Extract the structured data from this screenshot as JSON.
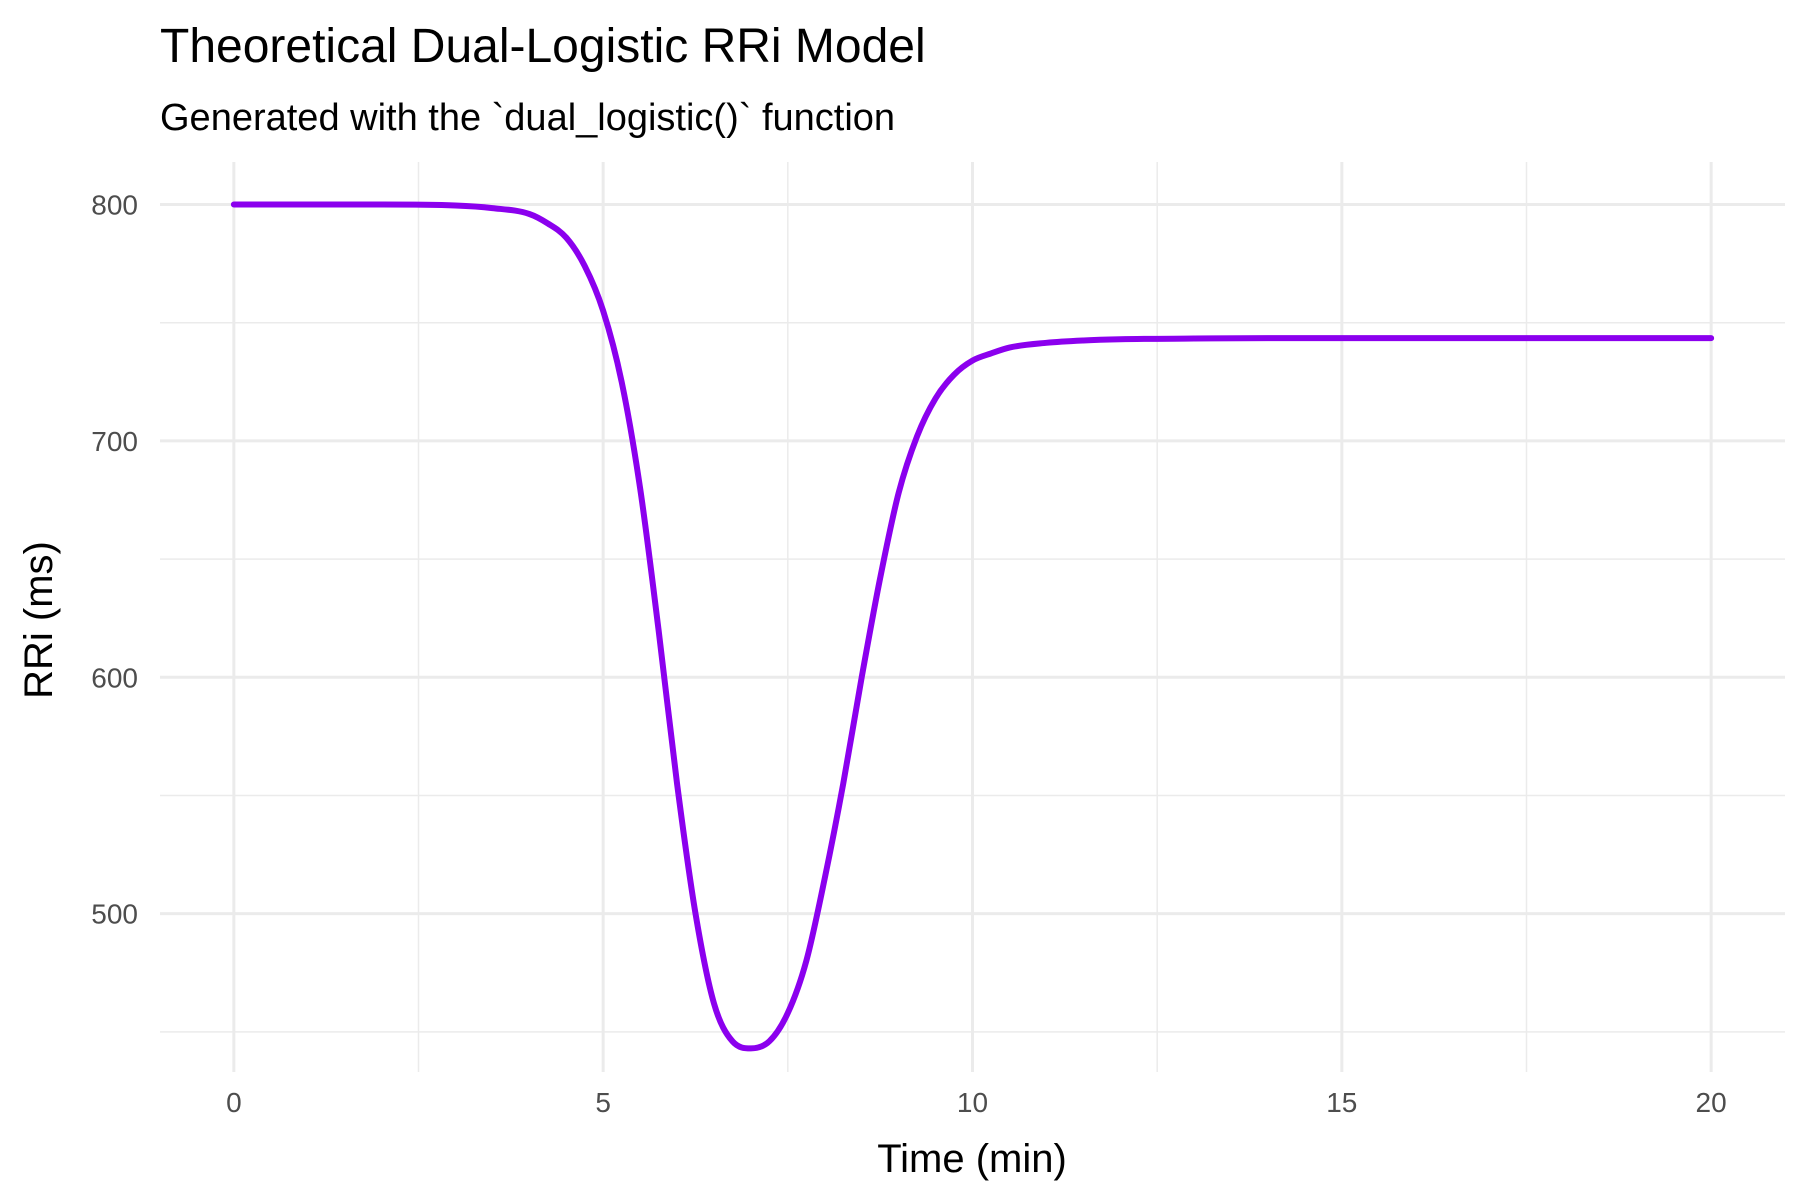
{
  "chart_data": {
    "type": "line",
    "title": "Theoretical Dual-Logistic RRi Model",
    "subtitle": "Generated with the `dual_logistic()` function",
    "xlabel": "Time (min)",
    "ylabel": "RRi (ms)",
    "xlim": [
      -1,
      21
    ],
    "ylim": [
      433,
      818
    ],
    "x_ticks": [
      0,
      5,
      10,
      15,
      20
    ],
    "y_ticks": [
      500,
      600,
      700,
      800
    ],
    "x_minor_ticks": [
      2.5,
      7.5,
      12.5,
      17.5
    ],
    "y_minor_ticks": [
      450,
      550,
      650,
      750
    ],
    "grid": true,
    "legend": "none",
    "line_color": "#8B00EE",
    "series": [
      {
        "x": [
          0,
          1,
          2,
          3,
          3.5,
          4,
          4.25,
          4.5,
          4.75,
          5,
          5.25,
          5.5,
          5.75,
          6,
          6.25,
          6.5,
          6.75,
          7,
          7.25,
          7.5,
          7.75,
          8,
          8.25,
          8.5,
          8.75,
          9,
          9.25,
          9.5,
          9.75,
          10,
          10.25,
          10.5,
          11,
          11.5,
          12,
          13,
          14,
          15,
          16,
          17,
          18,
          19,
          20
        ],
        "y": [
          800,
          800,
          800,
          799.6,
          798.5,
          796,
          792,
          786,
          774,
          755,
          725,
          680,
          620,
          555,
          500,
          462,
          446,
          443,
          446,
          458,
          480,
          515,
          555,
          600,
          642,
          678,
          702,
          718,
          728,
          734,
          737,
          739.5,
          741.5,
          742.5,
          743,
          743.3,
          743.5,
          743.5,
          743.5,
          743.5,
          743.5,
          743.5,
          743.5
        ]
      }
    ]
  }
}
